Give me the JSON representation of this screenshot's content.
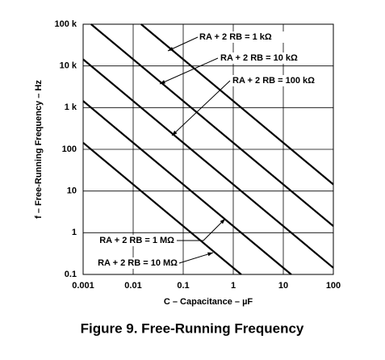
{
  "chart_data": {
    "type": "line",
    "title": "Figure 9.  Free-Running Frequency",
    "xlabel": "C – Capacitance – µF",
    "ylabel": "f – Free-Running Frequency – Hz",
    "xscale": "log",
    "yscale": "log",
    "grid": true,
    "color": "#000000",
    "xlim": [
      0.001,
      100
    ],
    "ylim": [
      0.1,
      100000
    ],
    "xticks": [
      0.001,
      0.01,
      0.1,
      1,
      10,
      100
    ],
    "yticks": [
      {
        "value": 100000,
        "label": "100 k"
      },
      {
        "value": 10000,
        "label": "10 k"
      },
      {
        "value": 1000,
        "label": "1 k"
      },
      100,
      10,
      1,
      0.1
    ],
    "series": [
      {
        "name": "RA + 2 RB = 1 kΩ",
        "x": [
          0.0144,
          100
        ],
        "values": [
          100000,
          14.4
        ]
      },
      {
        "name": "RA + 2 RB = 10 kΩ",
        "x": [
          0.00144,
          100
        ],
        "values": [
          100000,
          1.44
        ]
      },
      {
        "name": "RA + 2 RB = 100 kΩ",
        "x": [
          0.001,
          100
        ],
        "values": [
          14400,
          0.144
        ]
      },
      {
        "name": "RA + 2 RB = 1 MΩ",
        "x": [
          0.001,
          14.4
        ],
        "values": [
          1440,
          0.1
        ]
      },
      {
        "name": "RA + 2 RB = 10 MΩ",
        "x": [
          0.001,
          1.44
        ],
        "values": [
          144,
          0.1
        ]
      }
    ]
  }
}
